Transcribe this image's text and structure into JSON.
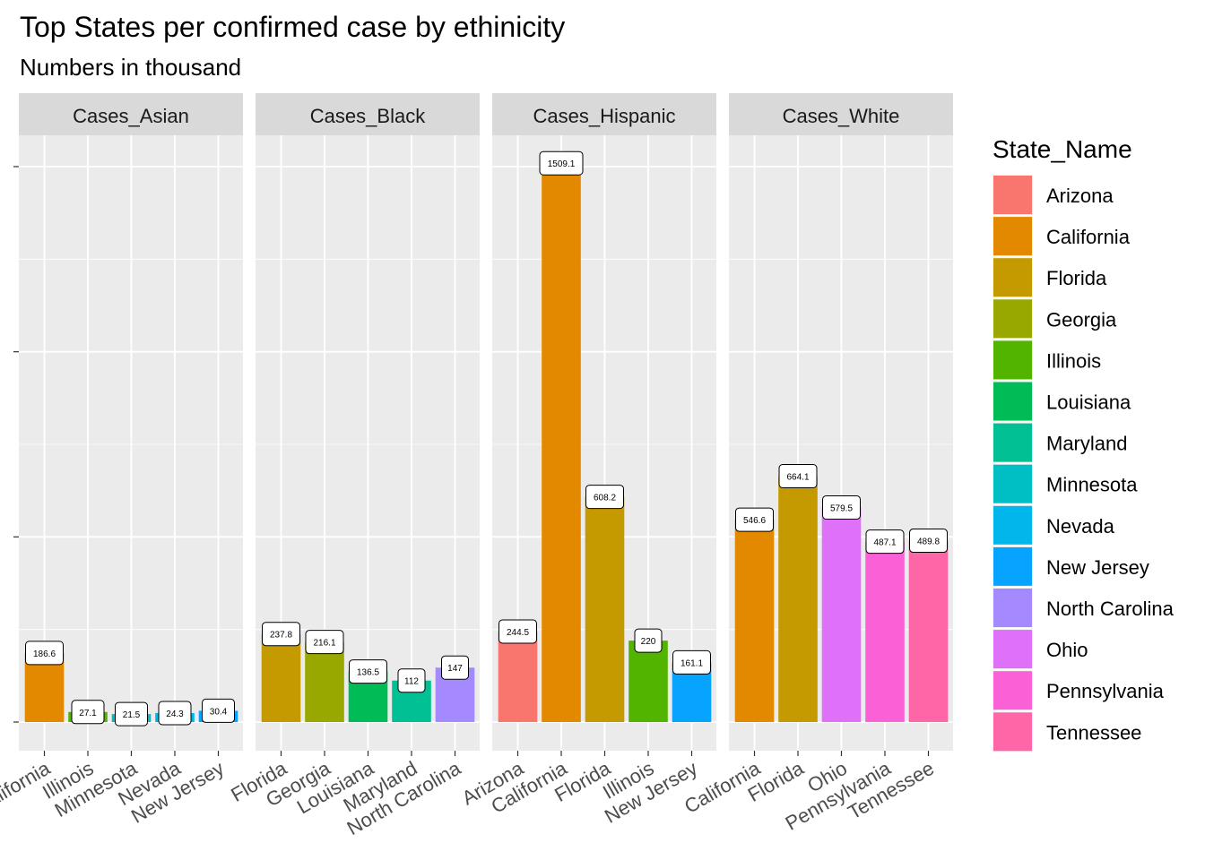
{
  "chart_data": {
    "type": "bar",
    "title": "Top States per confirmed case  by ethinicity",
    "subtitle": "Numbers in thousand",
    "xlabel": "",
    "ylabel": "",
    "ylim": [
      -30,
      1580
    ],
    "y_gridlines": [
      0,
      500,
      1000,
      1500
    ],
    "grid": true,
    "legend_position": "right",
    "legend_title": "State_Name",
    "legend": [
      {
        "name": "Arizona",
        "color": "#F8766D"
      },
      {
        "name": "California",
        "color": "#E38900"
      },
      {
        "name": "Florida",
        "color": "#C49A00"
      },
      {
        "name": "Georgia",
        "color": "#99A800"
      },
      {
        "name": "Illinois",
        "color": "#53B400"
      },
      {
        "name": "Louisiana",
        "color": "#00BC56"
      },
      {
        "name": "Maryland",
        "color": "#00C094"
      },
      {
        "name": "Minnesota",
        "color": "#00BFC4"
      },
      {
        "name": "Nevada",
        "color": "#00B6EB"
      },
      {
        "name": "New Jersey",
        "color": "#06A4FF"
      },
      {
        "name": "North Carolina",
        "color": "#A58AFF"
      },
      {
        "name": "Ohio",
        "color": "#DF70F8"
      },
      {
        "name": "Pennsylvania",
        "color": "#FB61D7"
      },
      {
        "name": "Tennessee",
        "color": "#FF66A8"
      }
    ],
    "facets": [
      {
        "name": "Cases_Asian",
        "categories": [
          "California",
          "Illinois",
          "Minnesota",
          "Nevada",
          "New Jersey"
        ],
        "values": [
          186.6,
          27.1,
          21.5,
          24.3,
          30.4
        ],
        "labels": [
          "186.6",
          "27.1",
          "21.5",
          "24.3",
          "30.4"
        ]
      },
      {
        "name": "Cases_Black",
        "categories": [
          "Florida",
          "Georgia",
          "Louisiana",
          "Maryland",
          "North Carolina"
        ],
        "values": [
          237.8,
          216.1,
          136.5,
          112,
          147
        ],
        "labels": [
          "237.8",
          "216.1",
          "136.5",
          "112",
          "147"
        ]
      },
      {
        "name": "Cases_Hispanic",
        "categories": [
          "Arizona",
          "California",
          "Florida",
          "Illinois",
          "New Jersey"
        ],
        "values": [
          244.5,
          1509.1,
          608.2,
          220,
          161.1
        ],
        "labels": [
          "244.5",
          "1509.1",
          "608.2",
          "220",
          "161.1"
        ]
      },
      {
        "name": "Cases_White",
        "categories": [
          "California",
          "Florida",
          "Ohio",
          "Pennsylvania",
          "Tennessee"
        ],
        "values": [
          546.6,
          664.1,
          579.5,
          487.1,
          489.8
        ],
        "labels": [
          "546.6",
          "664.1",
          "579.5",
          "487.1",
          "489.8"
        ]
      }
    ]
  }
}
